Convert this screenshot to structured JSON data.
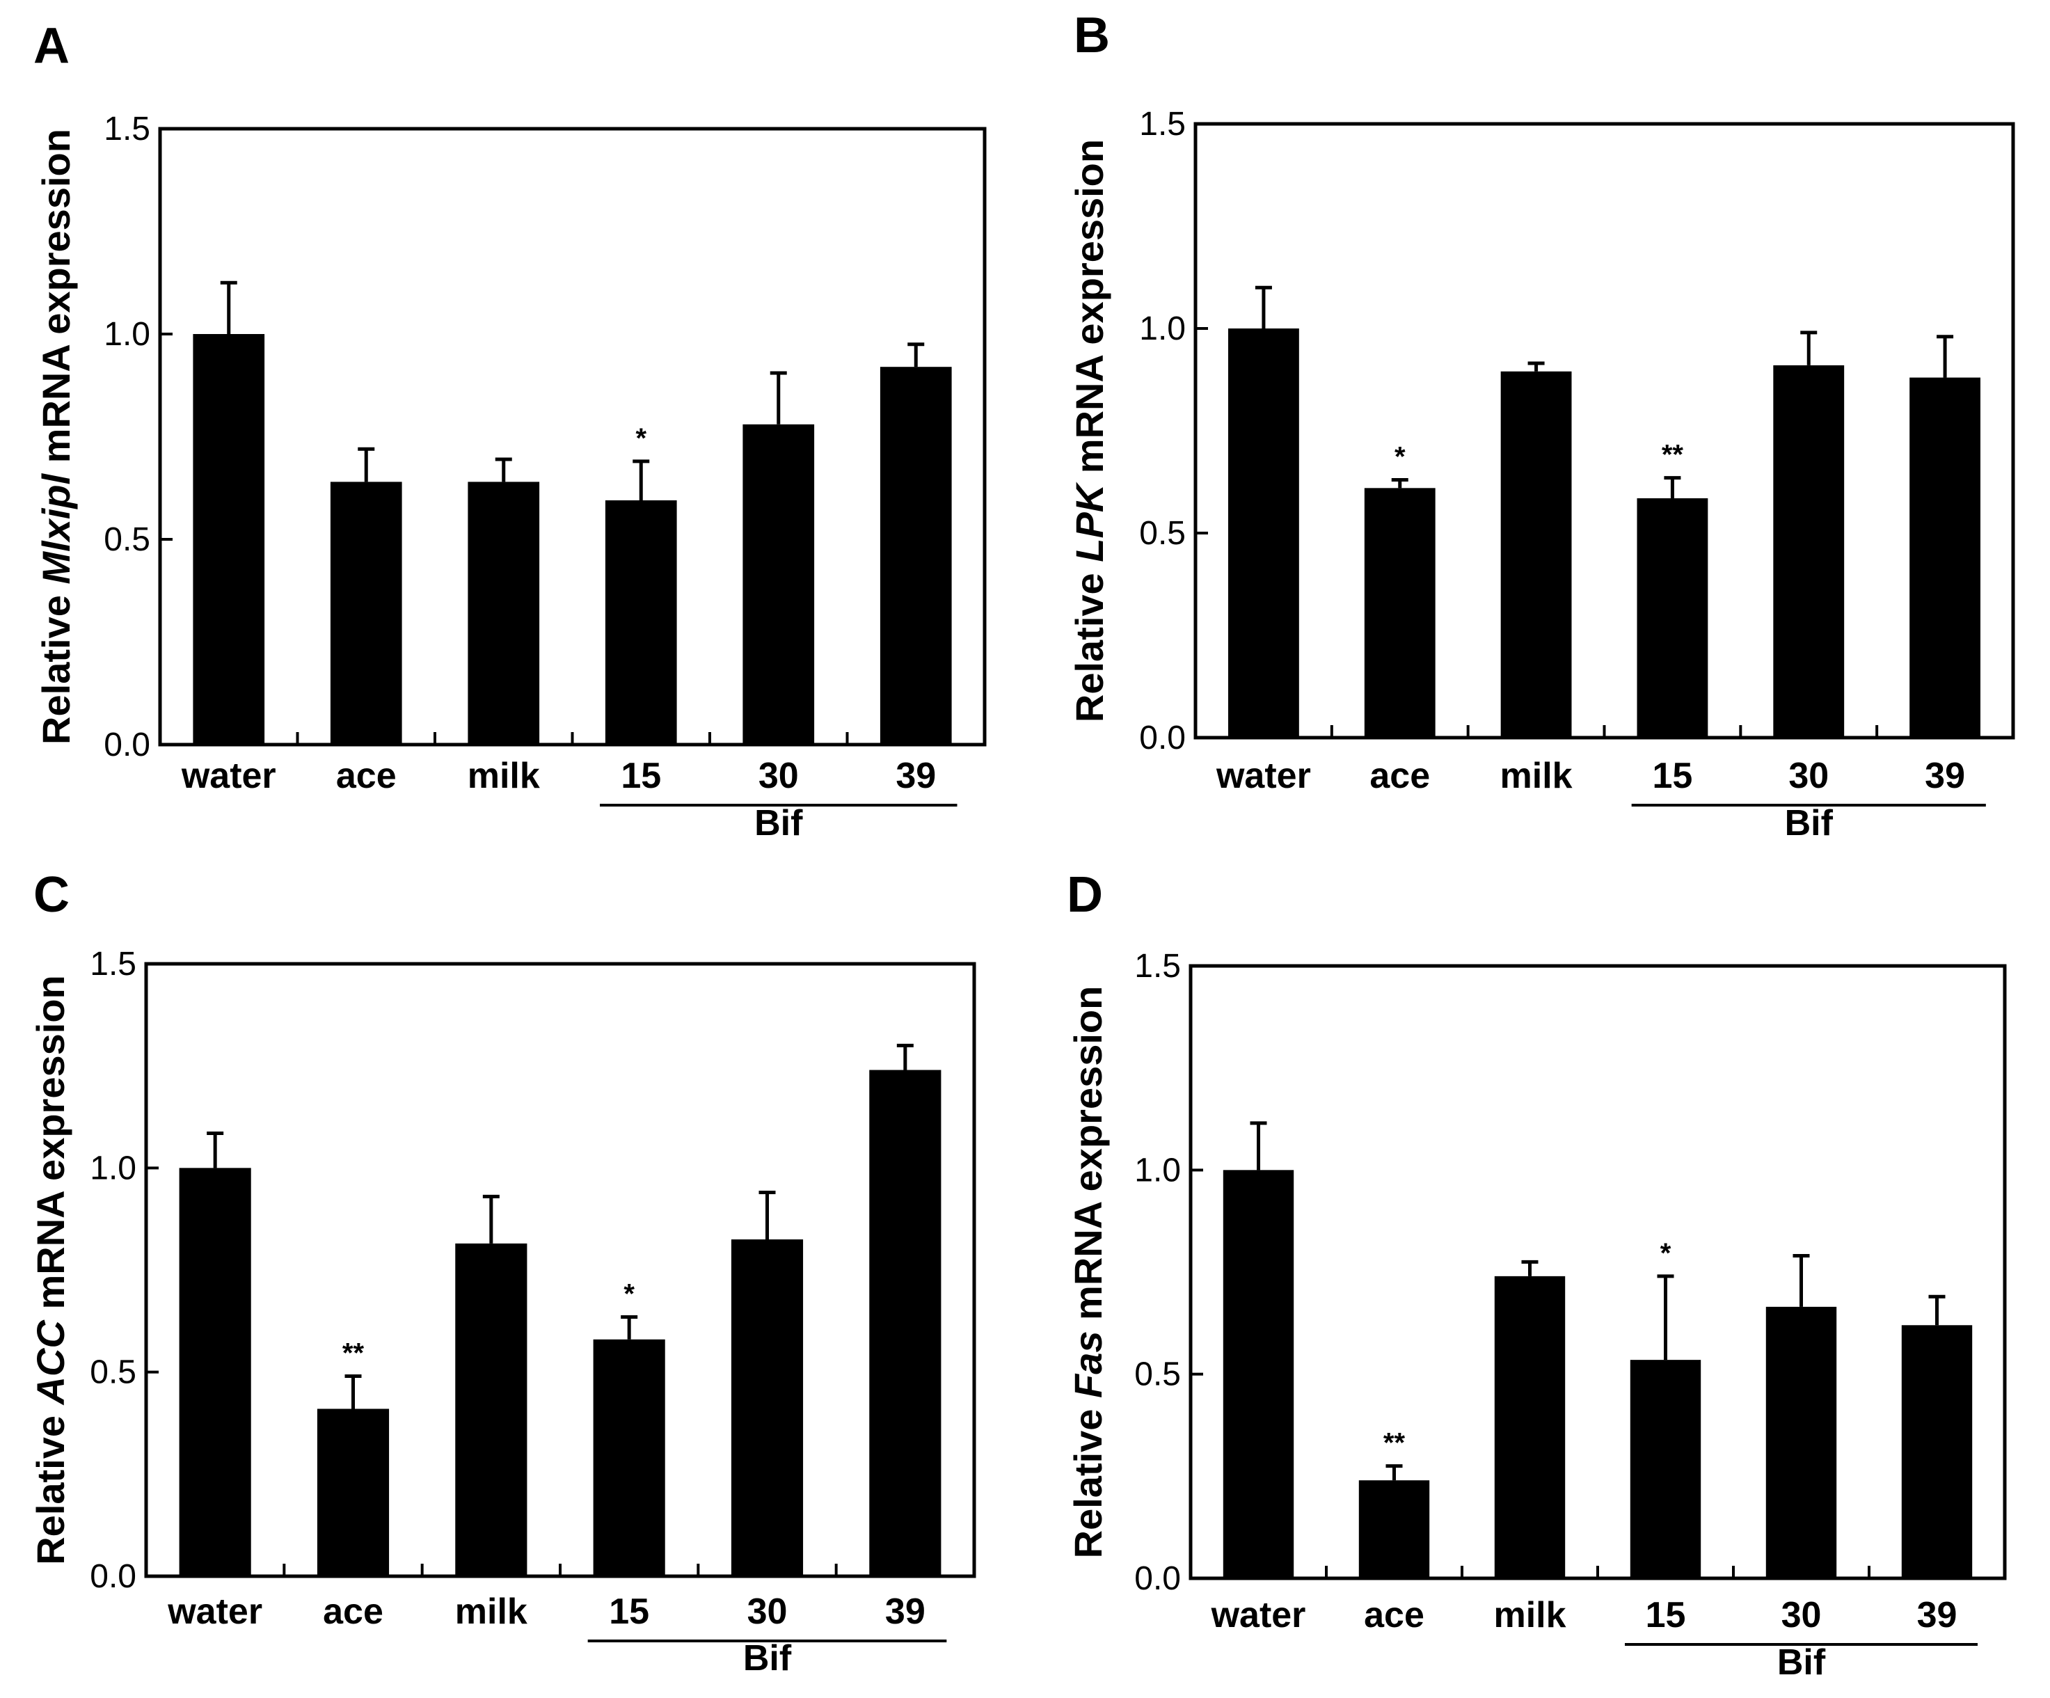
{
  "chart_data": [
    {
      "panel": "A",
      "type": "bar",
      "gene": "Mlxipl",
      "ylabel_prefix": "Relative ",
      "ylabel_suffix": " mRNA expression",
      "categories": [
        "water",
        "ace",
        "milk",
        "15",
        "30",
        "39"
      ],
      "values": [
        1.0,
        0.64,
        0.64,
        0.595,
        0.78,
        0.92
      ],
      "errors": [
        0.125,
        0.08,
        0.055,
        0.095,
        0.125,
        0.055
      ],
      "significance": [
        "",
        "",
        "",
        "*",
        "",
        ""
      ],
      "group_label": "Bif",
      "group_categories": [
        "15",
        "30",
        "39"
      ],
      "yticks": [
        "0.0",
        "0.5",
        "1.0",
        "1.5"
      ],
      "ylim": [
        0,
        1.5
      ]
    },
    {
      "panel": "B",
      "type": "bar",
      "gene": "LPK",
      "ylabel_prefix": "Relative ",
      "ylabel_suffix": " mRNA expression",
      "categories": [
        "water",
        "ace",
        "milk",
        "15",
        "30",
        "39"
      ],
      "values": [
        1.0,
        0.61,
        0.895,
        0.585,
        0.91,
        0.88
      ],
      "errors": [
        0.1,
        0.02,
        0.02,
        0.05,
        0.08,
        0.1
      ],
      "significance": [
        "",
        "*",
        "",
        "**",
        "",
        ""
      ],
      "group_label": "Bif",
      "group_categories": [
        "15",
        "30",
        "39"
      ],
      "yticks": [
        "0.0",
        "0.5",
        "1.0",
        "1.5"
      ],
      "ylim": [
        0,
        1.5
      ]
    },
    {
      "panel": "C",
      "type": "bar",
      "gene": "ACC",
      "ylabel_prefix": "Relative ",
      "ylabel_suffix": " mRNA expression",
      "categories": [
        "water",
        "ace",
        "milk",
        "15",
        "30",
        "39"
      ],
      "values": [
        1.0,
        0.41,
        0.815,
        0.58,
        0.825,
        1.24
      ],
      "errors": [
        0.085,
        0.08,
        0.115,
        0.055,
        0.115,
        0.06
      ],
      "significance": [
        "",
        "**",
        "",
        "*",
        "",
        ""
      ],
      "group_label": "Bif",
      "group_categories": [
        "15",
        "30",
        "39"
      ],
      "yticks": [
        "0.0",
        "0.5",
        "1.0",
        "1.5"
      ],
      "ylim": [
        0,
        1.5
      ]
    },
    {
      "panel": "D",
      "type": "bar",
      "gene": "Fas",
      "ylabel_prefix": "Relative ",
      "ylabel_suffix": " mRNA expression",
      "categories": [
        "water",
        "ace",
        "milk",
        "15",
        "30",
        "39"
      ],
      "values": [
        1.0,
        0.24,
        0.74,
        0.535,
        0.665,
        0.62
      ],
      "errors": [
        0.115,
        0.035,
        0.035,
        0.205,
        0.125,
        0.07
      ],
      "significance": [
        "",
        "**",
        "",
        "*",
        "",
        ""
      ],
      "group_label": "Bif",
      "group_categories": [
        "15",
        "30",
        "39"
      ],
      "yticks": [
        "0.0",
        "0.5",
        "1.0",
        "1.5"
      ],
      "ylim": [
        0,
        1.5
      ]
    }
  ]
}
